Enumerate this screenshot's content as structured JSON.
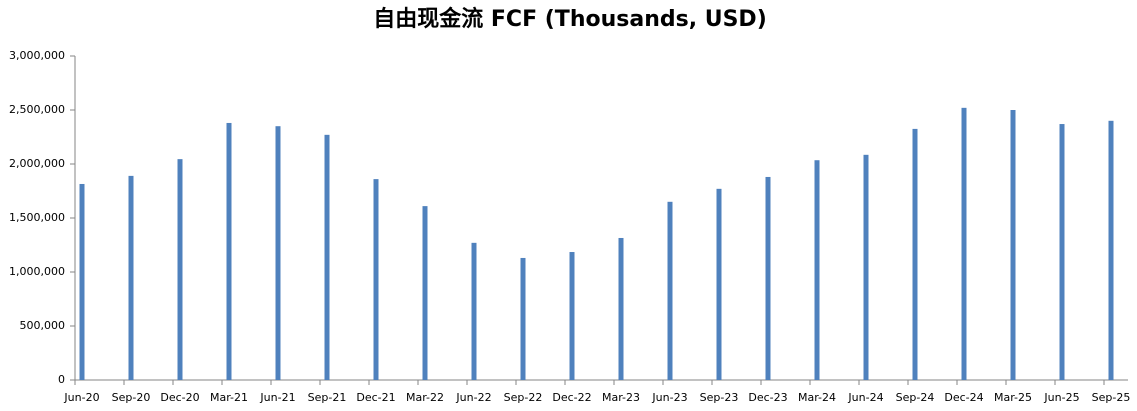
{
  "chart_data": {
    "type": "bar",
    "title": "自由现金流 FCF (Thousands, USD)",
    "categories": [
      "Jun-20",
      "Sep-20",
      "Dec-20",
      "Mar-21",
      "Jun-21",
      "Sep-21",
      "Dec-21",
      "Mar-22",
      "Jun-22",
      "Sep-22",
      "Dec-22",
      "Mar-23",
      "Jun-23",
      "Sep-23",
      "Dec-23",
      "Mar-24",
      "Jun-24",
      "Sep-24",
      "Dec-24",
      "Mar-25",
      "Jun-25",
      "Sep-25"
    ],
    "values": [
      1815000,
      1890000,
      2045000,
      2380000,
      2350000,
      2270000,
      1860000,
      1610000,
      1270000,
      1130000,
      1185000,
      1315000,
      1650000,
      1770000,
      1880000,
      2035000,
      2085000,
      2325000,
      2520000,
      2500000,
      2370000,
      2400000
    ],
    "color": "#4f81bd",
    "ylim": [
      0,
      3000000
    ],
    "yticks": [
      0,
      {
        "value": 500000,
        "label": "500,000"
      },
      {
        "value": 1000000,
        "label": "1,000,000"
      },
      {
        "value": 1500000,
        "label": "1,500,000"
      },
      {
        "value": 2000000,
        "label": "2,000,000"
      },
      {
        "value": 2500000,
        "label": "2,500,000"
      },
      {
        "value": 3000000,
        "label": "3,000,000"
      }
    ],
    "grid": false
  }
}
